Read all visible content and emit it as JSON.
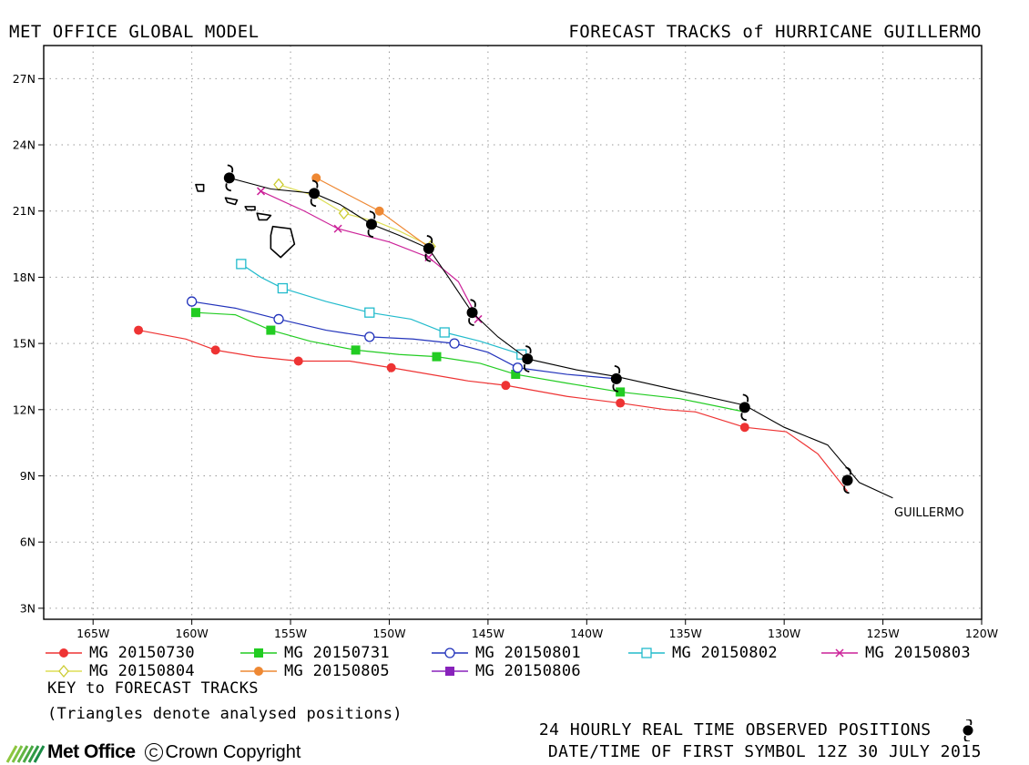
{
  "header": {
    "left": "MET OFFICE GLOBAL MODEL",
    "right": "FORECAST TRACKS of HURRICANE GUILLERMO"
  },
  "chart_data": {
    "type": "map-tracks",
    "xlim": [
      -167.5,
      -120
    ],
    "ylim": [
      2.5,
      28.5
    ],
    "x_ticks": [
      -165,
      -160,
      -155,
      -150,
      -145,
      -140,
      -135,
      -130,
      -125,
      -120
    ],
    "x_tick_labels": [
      "165W",
      "160W",
      "155W",
      "150W",
      "145W",
      "140W",
      "135W",
      "130W",
      "125W",
      "120W"
    ],
    "y_ticks": [
      3,
      6,
      9,
      12,
      15,
      18,
      21,
      24,
      27
    ],
    "y_tick_labels": [
      "3N",
      "6N",
      "9N",
      "12N",
      "15N",
      "18N",
      "21N",
      "24N",
      "27N"
    ],
    "grid": true,
    "storm_label": "GUILLERMO",
    "observed": {
      "line": [
        [
          -124.5,
          8.0
        ],
        [
          -126.2,
          8.7
        ],
        [
          -127.8,
          10.4
        ],
        [
          -130.0,
          11.2
        ],
        [
          -132.0,
          12.2
        ],
        [
          -135.0,
          12.8
        ],
        [
          -138.5,
          13.5
        ],
        [
          -140.5,
          13.8
        ],
        [
          -143.0,
          14.3
        ],
        [
          -144.5,
          15.3
        ],
        [
          -145.8,
          16.4
        ],
        [
          -147.0,
          18.0
        ],
        [
          -148.0,
          19.3
        ],
        [
          -149.5,
          19.9
        ],
        [
          -150.9,
          20.4
        ],
        [
          -152.5,
          21.3
        ],
        [
          -153.8,
          21.8
        ],
        [
          -156.0,
          22.0
        ],
        [
          -158.1,
          22.5
        ]
      ],
      "symbols": [
        [
          -126.8,
          8.8
        ],
        [
          -132.0,
          12.1
        ],
        [
          -138.5,
          13.4
        ],
        [
          -143.0,
          14.3
        ],
        [
          -145.8,
          16.4
        ],
        [
          -148.0,
          19.3
        ],
        [
          -150.9,
          20.4
        ],
        [
          -153.8,
          21.8
        ],
        [
          -158.1,
          22.5
        ]
      ]
    },
    "tracks": [
      {
        "name": "MG 20150730",
        "color": "#ee3333",
        "marker": "filled-circle",
        "line": [
          [
            -126.8,
            8.3
          ],
          [
            -128.3,
            10.0
          ],
          [
            -129.9,
            11.0
          ],
          [
            -132.0,
            11.2
          ],
          [
            -134.5,
            11.9
          ],
          [
            -136.0,
            12.0
          ],
          [
            -138.3,
            12.3
          ],
          [
            -141.0,
            12.6
          ],
          [
            -144.1,
            13.1
          ],
          [
            -146.0,
            13.3
          ],
          [
            -149.9,
            13.9
          ],
          [
            -152.0,
            14.2
          ],
          [
            -154.6,
            14.2
          ],
          [
            -156.8,
            14.4
          ],
          [
            -158.8,
            14.7
          ],
          [
            -160.3,
            15.2
          ],
          [
            -162.7,
            15.6
          ]
        ],
        "markers": [
          [
            -132.0,
            11.2
          ],
          [
            -138.3,
            12.3
          ],
          [
            -144.1,
            13.1
          ],
          [
            -149.9,
            13.9
          ],
          [
            -154.6,
            14.2
          ],
          [
            -158.8,
            14.7
          ],
          [
            -162.7,
            15.6
          ]
        ]
      },
      {
        "name": "MG 20150731",
        "color": "#22cc22",
        "marker": "filled-square",
        "line": [
          [
            -132.0,
            11.9
          ],
          [
            -135.3,
            12.5
          ],
          [
            -138.3,
            12.8
          ],
          [
            -141.0,
            13.2
          ],
          [
            -143.6,
            13.6
          ],
          [
            -145.4,
            14.1
          ],
          [
            -147.6,
            14.4
          ],
          [
            -149.5,
            14.5
          ],
          [
            -151.7,
            14.7
          ],
          [
            -154.0,
            15.1
          ],
          [
            -156.0,
            15.6
          ],
          [
            -157.8,
            16.3
          ],
          [
            -159.8,
            16.4
          ]
        ],
        "markers": [
          [
            -138.3,
            12.8
          ],
          [
            -143.6,
            13.6
          ],
          [
            -147.6,
            14.4
          ],
          [
            -151.7,
            14.7
          ],
          [
            -156.0,
            15.6
          ],
          [
            -159.8,
            16.4
          ]
        ]
      },
      {
        "name": "MG 20150801",
        "color": "#2233bb",
        "marker": "open-circle",
        "line": [
          [
            -138.5,
            13.4
          ],
          [
            -141.0,
            13.6
          ],
          [
            -143.5,
            13.9
          ],
          [
            -145.0,
            14.6
          ],
          [
            -146.7,
            15.0
          ],
          [
            -148.8,
            15.2
          ],
          [
            -151.0,
            15.3
          ],
          [
            -153.2,
            15.6
          ],
          [
            -155.6,
            16.1
          ],
          [
            -157.8,
            16.6
          ],
          [
            -160.0,
            16.9
          ]
        ],
        "markers": [
          [
            -143.5,
            13.9
          ],
          [
            -146.7,
            15.0
          ],
          [
            -151.0,
            15.3
          ],
          [
            -155.6,
            16.1
          ],
          [
            -160.0,
            16.9
          ]
        ]
      },
      {
        "name": "MG 20150802",
        "color": "#22bbcc",
        "marker": "open-square",
        "line": [
          [
            -143.3,
            14.5
          ],
          [
            -145.4,
            15.1
          ],
          [
            -147.2,
            15.5
          ],
          [
            -148.9,
            16.1
          ],
          [
            -151.0,
            16.4
          ],
          [
            -153.2,
            16.9
          ],
          [
            -155.4,
            17.5
          ],
          [
            -156.5,
            18.0
          ],
          [
            -157.5,
            18.6
          ]
        ],
        "markers": [
          [
            -143.3,
            14.5
          ],
          [
            -147.2,
            15.5
          ],
          [
            -151.0,
            16.4
          ],
          [
            -155.4,
            17.5
          ],
          [
            -157.5,
            18.6
          ]
        ]
      },
      {
        "name": "MG 20150803",
        "color": "#cc2299",
        "marker": "cross",
        "line": [
          [
            -145.5,
            16.1
          ],
          [
            -146.5,
            17.8
          ],
          [
            -148.0,
            18.9
          ],
          [
            -150.0,
            19.6
          ],
          [
            -152.6,
            20.2
          ],
          [
            -154.3,
            21.0
          ],
          [
            -156.5,
            21.9
          ]
        ],
        "markers": [
          [
            -145.5,
            16.1
          ],
          [
            -148.0,
            18.9
          ],
          [
            -152.6,
            20.2
          ],
          [
            -156.5,
            21.9
          ]
        ]
      },
      {
        "name": "MG 20150804",
        "color": "#dddd55",
        "marker": "open-diamond",
        "line": [
          [
            -147.9,
            19.4
          ],
          [
            -149.5,
            20.1
          ],
          [
            -150.6,
            20.5
          ],
          [
            -152.3,
            20.9
          ],
          [
            -153.8,
            21.7
          ],
          [
            -155.6,
            22.2
          ]
        ],
        "markers": [
          [
            -147.9,
            19.4
          ],
          [
            -152.3,
            20.9
          ],
          [
            -155.6,
            22.2
          ]
        ]
      },
      {
        "name": "MG 20150805",
        "color": "#ee8833",
        "marker": "filled-circle",
        "line": [
          [
            -147.9,
            19.3
          ],
          [
            -150.5,
            21.0
          ],
          [
            -152.0,
            21.7
          ],
          [
            -153.7,
            22.5
          ]
        ],
        "markers": [
          [
            -150.5,
            21.0
          ],
          [
            -153.7,
            22.5
          ]
        ]
      },
      {
        "name": "MG 20150806",
        "color": "#8822bb",
        "marker": "filled-square",
        "line": [],
        "markers": []
      }
    ],
    "islands": [
      [
        [
          -155.9,
          20.3
        ],
        [
          -155.0,
          20.2
        ],
        [
          -154.8,
          19.5
        ],
        [
          -155.5,
          18.9
        ],
        [
          -156.0,
          19.3
        ],
        [
          -156.0,
          19.9
        ]
      ],
      [
        [
          -156.7,
          20.9
        ],
        [
          -156.0,
          20.8
        ],
        [
          -156.2,
          20.6
        ],
        [
          -156.6,
          20.6
        ]
      ],
      [
        [
          -157.3,
          21.2
        ],
        [
          -156.8,
          21.2
        ],
        [
          -156.8,
          21.05
        ],
        [
          -157.2,
          21.05
        ]
      ],
      [
        [
          -158.3,
          21.6
        ],
        [
          -157.7,
          21.5
        ],
        [
          -157.8,
          21.3
        ],
        [
          -158.2,
          21.4
        ]
      ],
      [
        [
          -159.8,
          22.2
        ],
        [
          -159.4,
          22.2
        ],
        [
          -159.4,
          21.9
        ],
        [
          -159.7,
          21.9
        ]
      ]
    ]
  },
  "legend": {
    "key_title": "KEY to FORECAST TRACKS",
    "triangle_note": "(Triangles denote analysed positions)"
  },
  "footer": {
    "brand": "Met Office",
    "copyright": "Crown Copyright",
    "observed_note": "24 HOURLY REAL TIME OBSERVED POSITIONS",
    "first_symbol": "DATE/TIME OF FIRST SYMBOL 12Z 30 JULY 2015"
  }
}
